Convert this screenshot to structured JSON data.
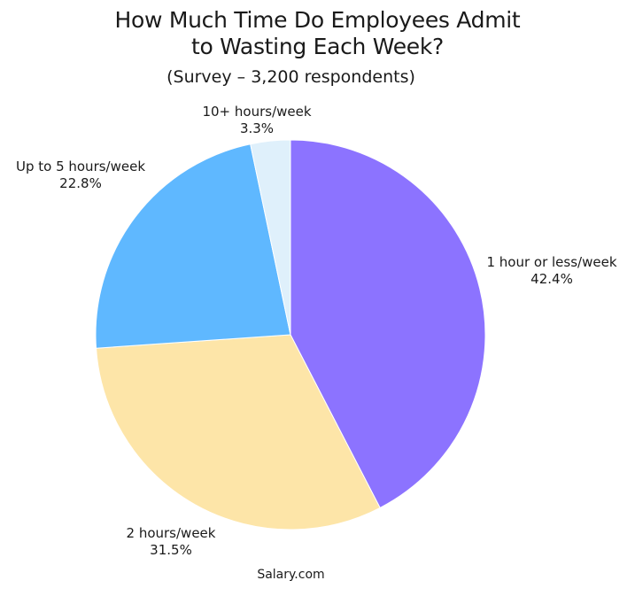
{
  "chart_data": {
    "type": "pie",
    "title": "How Much Time Do Employees Admit to Wasting Each Week?",
    "title_lines": [
      "How Much Time Do Employees Admit",
      "to Wasting Each Week?"
    ],
    "subtitle": "(Survey – 3,200 respondents)",
    "source": "Salary.com",
    "categories": [
      "1 hour or less/week",
      "2 hours/week",
      "Up to 5 hours/week",
      "10+ hours/week"
    ],
    "values": [
      42.4,
      31.5,
      22.8,
      3.3
    ],
    "value_labels": [
      "42.4%",
      "31.5%",
      "22.8%",
      "3.3%"
    ],
    "colors": [
      "#8c73ff",
      "#fde5a8",
      "#5fb8ff",
      "#dff0fb"
    ],
    "start_angle": "12 o'clock",
    "direction": "clockwise",
    "legend": "none (direct labels)"
  }
}
